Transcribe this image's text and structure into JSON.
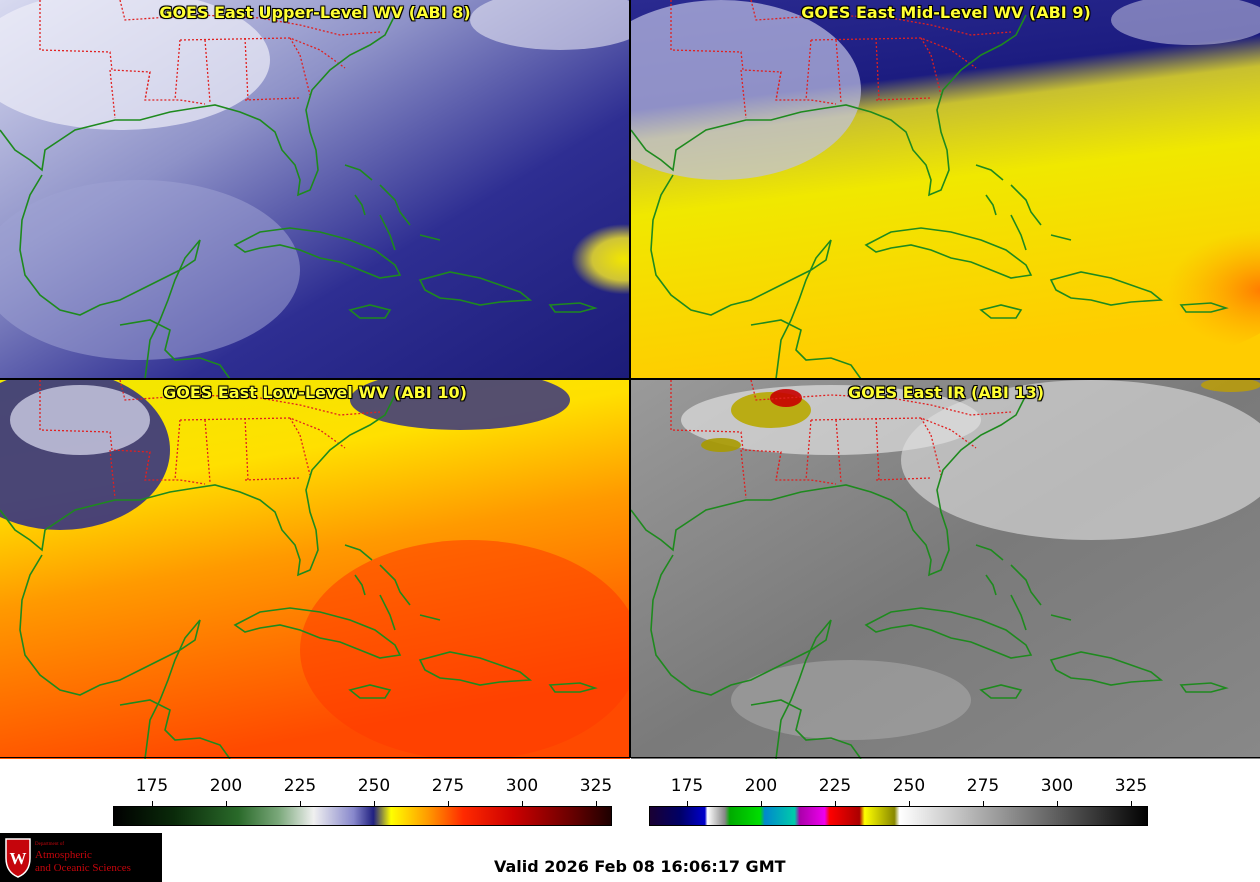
{
  "panels": [
    {
      "title": "GOES East Upper-Level WV (ABI 8)",
      "colormap": "water-vapor"
    },
    {
      "title": "GOES East Mid-Level WV (ABI 9)",
      "colormap": "water-vapor"
    },
    {
      "title": "GOES East Low-Level WV (ABI 10)",
      "colormap": "water-vapor"
    },
    {
      "title": "GOES East IR (ABI 13)",
      "colormap": "infrared"
    }
  ],
  "colorbars": {
    "wv": {
      "ticks": [
        "175",
        "200",
        "225",
        "250",
        "275",
        "300",
        "325"
      ]
    },
    "ir": {
      "ticks": [
        "175",
        "200",
        "225",
        "250",
        "275",
        "300",
        "325"
      ]
    }
  },
  "footer": {
    "valid": "Valid 2026 Feb 08 16:06:17 GMT",
    "logo_dept": "Department of",
    "logo_line1": "Atmospheric",
    "logo_line2": "and Oceanic Sciences"
  },
  "colors": {
    "coastline": "#1a8a1a",
    "state_border": "#e02020",
    "title_text": "#ffff33"
  },
  "icons": {
    "logo": "uw-crest-icon"
  }
}
